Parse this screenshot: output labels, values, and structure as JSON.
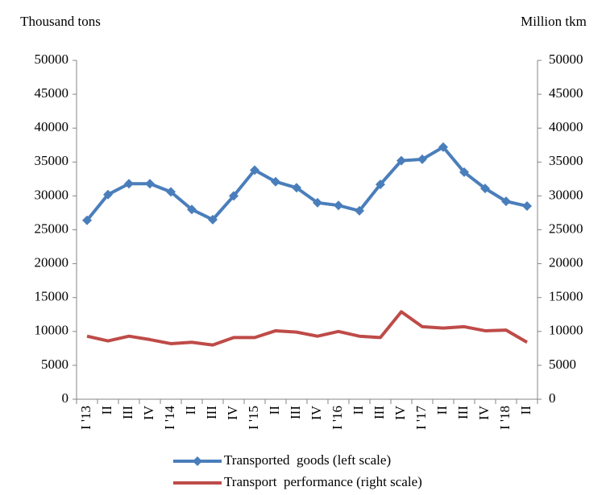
{
  "chart_data": {
    "type": "line",
    "y_label": "Thousand tons",
    "y2_label": "Million tkm",
    "categories": [
      "I '13",
      "II",
      "III",
      "IV",
      "I '14",
      "II",
      "III",
      "IV",
      "I '15",
      "II",
      "III",
      "IV",
      "I '16",
      "II",
      "III",
      "IV",
      "I '17",
      "II",
      "III",
      "IV",
      "I '18",
      "II"
    ],
    "series": [
      {
        "name": "Transported  goods (left scale)",
        "color": "#4a7ebb",
        "marker": "diamond",
        "values": [
          26400,
          30200,
          31800,
          31800,
          30600,
          28000,
          26500,
          30000,
          33800,
          32100,
          31200,
          29000,
          28600,
          27800,
          31700,
          35200,
          35400,
          37200,
          33500,
          31100,
          29200,
          28500
        ]
      },
      {
        "name": "Transport  performance (right scale)",
        "color": "#be4b48",
        "axis": "y2",
        "values": [
          9300,
          8600,
          9300,
          8800,
          8200,
          8400,
          8000,
          9100,
          9100,
          10100,
          9900,
          9300,
          10000,
          9300,
          9100,
          12900,
          10700,
          10500,
          10700,
          10100,
          10200,
          8400
        ]
      }
    ],
    "ylim": [
      0,
      50000
    ],
    "yticks": [
      0,
      5000,
      10000,
      15000,
      20000,
      25000,
      30000,
      35000,
      40000,
      45000,
      50000
    ],
    "y2lim": [
      0,
      50000
    ],
    "y2ticks": [
      0,
      5000,
      10000,
      15000,
      20000,
      25000,
      30000,
      35000,
      40000,
      45000,
      50000
    ],
    "legend": "bottom"
  }
}
